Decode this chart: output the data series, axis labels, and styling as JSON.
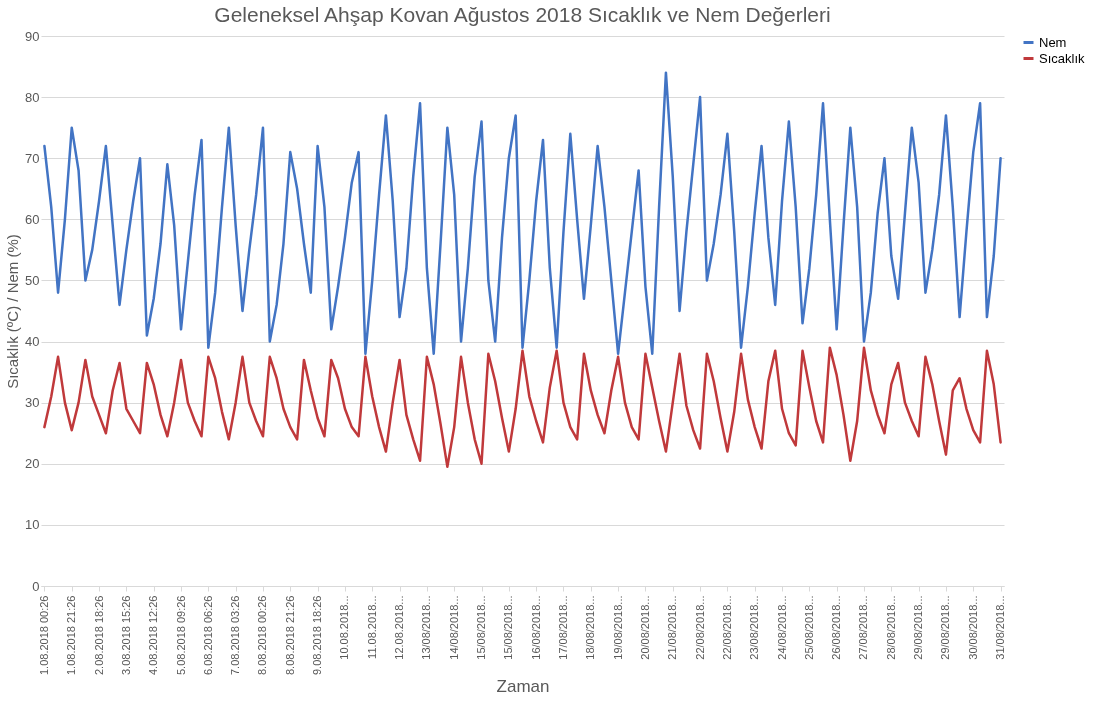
{
  "chart_data": {
    "type": "line",
    "title": "Geleneksel Ahşap Kovan Ağustos 2018 Sıcaklık ve Nem Değerleri",
    "xlabel": "Zaman",
    "ylabel": "Sıcaklık (ºC) / Nem (%)",
    "categories": [
      "1.08.2018 00:26",
      null,
      null,
      null,
      "1.08.2018 21:26",
      null,
      null,
      null,
      "2.08.2018 18:26",
      null,
      null,
      null,
      "3.08.2018 15:26",
      null,
      null,
      null,
      "4.08.2018 12:26",
      null,
      null,
      null,
      "5.08.2018 09:26",
      null,
      null,
      null,
      "6.08.2018 06:26",
      null,
      null,
      null,
      "7.08.2018 03:26",
      null,
      null,
      null,
      "8.08.2018 00:26",
      null,
      null,
      null,
      "8.08.2018 21:26",
      null,
      null,
      null,
      "9.08.2018 18:26",
      null,
      null,
      null,
      "10.08.2018...",
      null,
      null,
      null,
      "11.08.2018...",
      null,
      null,
      null,
      "12.08.2018...",
      null,
      null,
      null,
      "13/08/2018...",
      null,
      null,
      null,
      "14/08/2018...",
      null,
      null,
      null,
      "15/08/2018...",
      null,
      null,
      null,
      "15/08/2018...",
      null,
      null,
      null,
      "16/08/2018...",
      null,
      null,
      null,
      "17/08/2018...",
      null,
      null,
      null,
      "18/08/2018...",
      null,
      null,
      null,
      "19/08/2018...",
      null,
      null,
      null,
      "20/08/2018...",
      null,
      null,
      null,
      "21/08/2018...",
      null,
      null,
      null,
      "22/08/2018...",
      null,
      null,
      null,
      "22/08/2018...",
      null,
      null,
      null,
      "23/08/2018...",
      null,
      null,
      null,
      "24/08/2018...",
      null,
      null,
      null,
      "25/08/2018...",
      null,
      null,
      null,
      "26/08/2018...",
      null,
      null,
      null,
      "27/08/2018...",
      null,
      null,
      null,
      "28/08/2018...",
      null,
      null,
      null,
      "29/08/2018...",
      null,
      null,
      null,
      "29/08/2018...",
      null,
      null,
      null,
      "30/08/2018...",
      null,
      null,
      null,
      "31/08/2018..."
    ],
    "ylim": [
      0,
      90
    ],
    "yticks": [
      0,
      10,
      20,
      30,
      40,
      50,
      60,
      70,
      80,
      90
    ],
    "grid": "y",
    "legend": "right",
    "line_style": "solid",
    "marker": "none",
    "series": [
      {
        "name": "Nem",
        "color": "#4274c4",
        "values": [
          72,
          62,
          48,
          60,
          75,
          68,
          50,
          55,
          63,
          72,
          59,
          46,
          55,
          63,
          70,
          41,
          47,
          56,
          69,
          59,
          42,
          53,
          64,
          73,
          39,
          48,
          62,
          75,
          59,
          45,
          55,
          64,
          75,
          40,
          46,
          56,
          71,
          65,
          56,
          48,
          72,
          62,
          42,
          49,
          57,
          66,
          71,
          38,
          50,
          64,
          77,
          63,
          44,
          52,
          67,
          79,
          52,
          38,
          56,
          75,
          64,
          40,
          52,
          67,
          76,
          50,
          40,
          57,
          70,
          77,
          39,
          50,
          63,
          73,
          52,
          39,
          58,
          74,
          60,
          47,
          59,
          72,
          62,
          50,
          38,
          48,
          58,
          68,
          49,
          38,
          62,
          84,
          67,
          45,
          58,
          69,
          80,
          50,
          56,
          64,
          74,
          58,
          39,
          49,
          61,
          72,
          57,
          46,
          63,
          76,
          62,
          43,
          52,
          64,
          79,
          60,
          42,
          59,
          75,
          62,
          40,
          48,
          61,
          70,
          54,
          47,
          61,
          75,
          66,
          48,
          55,
          64,
          77,
          62,
          44,
          58,
          71,
          79,
          44,
          54,
          70
        ]
      },
      {
        "name": "Sıcaklık",
        "color": "#c0393b",
        "values": [
          26,
          31,
          37.5,
          30,
          25.5,
          30,
          37,
          31,
          28,
          25,
          32,
          36.5,
          29,
          27,
          25,
          36.5,
          33,
          28,
          24.5,
          30,
          37,
          30,
          27,
          24.5,
          37.5,
          34,
          28.5,
          24,
          30,
          37.5,
          30,
          27,
          24.5,
          37.5,
          34,
          29,
          26,
          24,
          37,
          32,
          27.5,
          24.5,
          37,
          34,
          29,
          26,
          24.5,
          37.5,
          31,
          26,
          22,
          30,
          37,
          28,
          24,
          20.5,
          37.5,
          33,
          26.5,
          19.5,
          26,
          37.5,
          30,
          24,
          20,
          38,
          33.5,
          27.5,
          22,
          29,
          38.5,
          31,
          27,
          23.5,
          32.5,
          38.5,
          30,
          26,
          24,
          38,
          32,
          28,
          25,
          32,
          37.5,
          30,
          26,
          24,
          38,
          32.5,
          27,
          22,
          30,
          38,
          29.5,
          25.5,
          22.5,
          38,
          33.5,
          27.5,
          22,
          28.5,
          38,
          30.5,
          26,
          22.5,
          33.5,
          38.5,
          29,
          25,
          23,
          38.5,
          32.5,
          27,
          23.5,
          39,
          34.5,
          28,
          20.5,
          27,
          39,
          32,
          28,
          25,
          33,
          36.5,
          30,
          27,
          24.5,
          37.5,
          33,
          27,
          21.5,
          32,
          34,
          29,
          25.5,
          23.5,
          38.5,
          33,
          23.5
        ]
      }
    ]
  }
}
